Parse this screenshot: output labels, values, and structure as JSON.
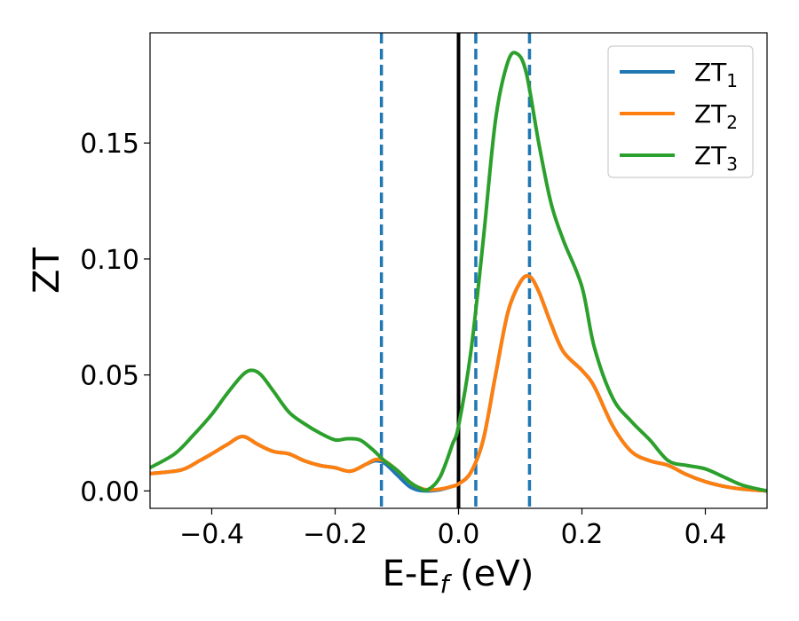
{
  "chart_data": {
    "type": "line",
    "title": "",
    "xlabel": {
      "main": "E-E",
      "sub": "f",
      "unit": " (eV)"
    },
    "ylabel": "ZT",
    "xlim": [
      -0.5,
      0.5
    ],
    "ylim": [
      -0.0075,
      0.1975
    ],
    "xticks": [
      -0.4,
      -0.2,
      0.0,
      0.2,
      0.4
    ],
    "xtick_labels": [
      "−0.4",
      "−0.2",
      "0.0",
      "0.2",
      "0.4"
    ],
    "yticks": [
      0.0,
      0.05,
      0.1,
      0.15
    ],
    "ytick_labels": [
      "0.00",
      "0.05",
      "0.10",
      "0.15"
    ],
    "grid": false,
    "legend_position": "top-right",
    "vertical_lines": [
      {
        "x": -0.125,
        "style": "dashed",
        "color": "#1f77b4"
      },
      {
        "x": 0.0,
        "style": "solid",
        "color": "#000000"
      },
      {
        "x": 0.028,
        "style": "dashed",
        "color": "#1f77b4"
      },
      {
        "x": 0.115,
        "style": "dashed",
        "color": "#1f77b4"
      }
    ],
    "series": [
      {
        "name": "ZT",
        "sub": "1",
        "color": "#1f77b4",
        "x": [
          -0.5,
          -0.45,
          -0.42,
          -0.4,
          -0.375,
          -0.35,
          -0.325,
          -0.3,
          -0.275,
          -0.25,
          -0.225,
          -0.2,
          -0.175,
          -0.15,
          -0.135,
          -0.12,
          -0.1,
          -0.08,
          -0.065,
          -0.05,
          -0.03,
          -0.01,
          0.0,
          0.02,
          0.04,
          0.06,
          0.08,
          0.1,
          0.115,
          0.13,
          0.15,
          0.17,
          0.2,
          0.22,
          0.25,
          0.28,
          0.31,
          0.34,
          0.37,
          0.4,
          0.43,
          0.46,
          0.5
        ],
        "y": [
          0.0075,
          0.009,
          0.013,
          0.016,
          0.02,
          0.0235,
          0.02,
          0.017,
          0.016,
          0.013,
          0.011,
          0.01,
          0.0085,
          0.0115,
          0.013,
          0.012,
          0.007,
          0.002,
          0.0003,
          0.0,
          0.0005,
          0.002,
          0.003,
          0.008,
          0.022,
          0.05,
          0.077,
          0.09,
          0.0925,
          0.086,
          0.072,
          0.06,
          0.052,
          0.045,
          0.028,
          0.017,
          0.013,
          0.011,
          0.007,
          0.004,
          0.002,
          0.0008,
          0.0
        ]
      },
      {
        "name": "ZT",
        "sub": "2",
        "color": "#ff7f0e",
        "x": [
          -0.5,
          -0.45,
          -0.42,
          -0.4,
          -0.375,
          -0.35,
          -0.325,
          -0.3,
          -0.275,
          -0.25,
          -0.225,
          -0.2,
          -0.175,
          -0.15,
          -0.135,
          -0.12,
          -0.1,
          -0.08,
          -0.065,
          -0.05,
          -0.03,
          -0.01,
          0.0,
          0.02,
          0.04,
          0.06,
          0.08,
          0.1,
          0.115,
          0.13,
          0.15,
          0.17,
          0.2,
          0.22,
          0.25,
          0.28,
          0.31,
          0.34,
          0.37,
          0.4,
          0.43,
          0.46,
          0.5
        ],
        "y": [
          0.0075,
          0.009,
          0.013,
          0.016,
          0.02,
          0.0235,
          0.02,
          0.017,
          0.016,
          0.013,
          0.011,
          0.01,
          0.0085,
          0.0115,
          0.0135,
          0.013,
          0.009,
          0.004,
          0.0015,
          0.0005,
          0.0008,
          0.002,
          0.003,
          0.008,
          0.022,
          0.05,
          0.077,
          0.09,
          0.0925,
          0.086,
          0.072,
          0.06,
          0.052,
          0.045,
          0.028,
          0.017,
          0.013,
          0.011,
          0.007,
          0.004,
          0.002,
          0.0008,
          0.0
        ]
      },
      {
        "name": "ZT",
        "sub": "3",
        "color": "#2ca02c",
        "x": [
          -0.5,
          -0.46,
          -0.43,
          -0.4,
          -0.375,
          -0.35,
          -0.335,
          -0.32,
          -0.3,
          -0.275,
          -0.25,
          -0.225,
          -0.2,
          -0.18,
          -0.16,
          -0.14,
          -0.12,
          -0.1,
          -0.08,
          -0.065,
          -0.05,
          -0.03,
          -0.01,
          0.0,
          0.02,
          0.04,
          0.06,
          0.08,
          0.095,
          0.11,
          0.13,
          0.15,
          0.17,
          0.2,
          0.22,
          0.25,
          0.28,
          0.31,
          0.34,
          0.37,
          0.4,
          0.43,
          0.46,
          0.5
        ],
        "y": [
          0.01,
          0.016,
          0.024,
          0.033,
          0.042,
          0.05,
          0.052,
          0.05,
          0.043,
          0.034,
          0.029,
          0.025,
          0.022,
          0.0225,
          0.022,
          0.018,
          0.013,
          0.009,
          0.004,
          0.0015,
          0.0005,
          0.006,
          0.02,
          0.028,
          0.06,
          0.108,
          0.16,
          0.185,
          0.1885,
          0.18,
          0.15,
          0.124,
          0.108,
          0.088,
          0.062,
          0.04,
          0.03,
          0.022,
          0.013,
          0.011,
          0.0095,
          0.006,
          0.0025,
          0.0
        ]
      }
    ]
  }
}
